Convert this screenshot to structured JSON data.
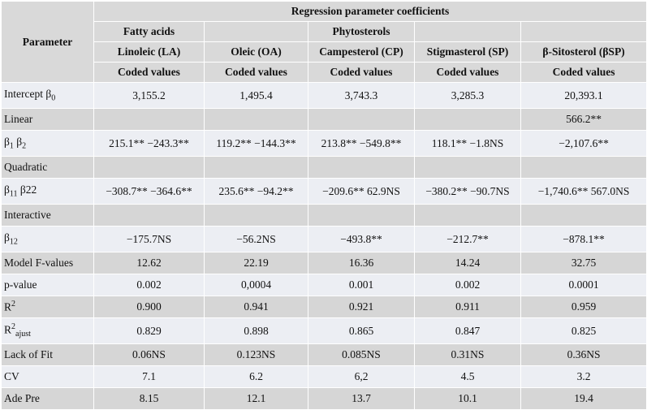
{
  "table": {
    "header": {
      "parameter": "Parameter",
      "group": "Regression parameter coefficients",
      "families": [
        "Fatty acids",
        null,
        "Phytosterols",
        null,
        null
      ],
      "columns": [
        "Linoleic (LA)",
        "Oleic (OA)",
        "Campesterol (CP)",
        "Stigmasterol (SP)",
        "β-Sitosterol (βSP)"
      ],
      "units": [
        "Coded values",
        "Coded values",
        "Coded values",
        "Coded values",
        "Coded values"
      ]
    },
    "rows": [
      {
        "label": [
          {
            "text": "Intercept β"
          },
          {
            "sub": "0"
          }
        ],
        "cells": [
          "3,155.2",
          "1,495.4",
          "3,743.3",
          "3,285.3",
          "20,393.1"
        ]
      },
      {
        "label": [
          {
            "text": "Linear"
          }
        ],
        "cells": [
          null,
          null,
          null,
          null,
          "566.2**"
        ]
      },
      {
        "label": [
          {
            "text": "β"
          },
          {
            "sub": "1"
          },
          {
            "text": " β"
          },
          {
            "sub": "2"
          }
        ],
        "cells": [
          "215.1** −243.3**",
          "119.2** −144.3**",
          "213.8**  −549.8**",
          "118.1**  −1.8NS",
          "−2,107.6**"
        ]
      },
      {
        "label": [
          {
            "text": "Quadratic"
          }
        ],
        "cells": [
          null,
          null,
          null,
          null,
          null
        ]
      },
      {
        "label": [
          {
            "text": "β"
          },
          {
            "sub": "11"
          },
          {
            "text": " β22"
          }
        ],
        "cells": [
          "−308.7** −364.6**",
          "235.6** −94.2**",
          "−209.6** 62.9NS",
          "−380.2** −90.7NS",
          "−1,740.6**  567.0NS"
        ]
      },
      {
        "label": [
          {
            "text": "Interactive"
          }
        ],
        "cells": [
          null,
          null,
          null,
          null,
          null
        ]
      },
      {
        "label": [
          {
            "text": "β"
          },
          {
            "sub": "12"
          }
        ],
        "cells": [
          "−175.7NS",
          "−56.2NS",
          "−493.8**",
          "−212.7**",
          "−878.1**"
        ]
      },
      {
        "label": [
          {
            "text": "Model F-values"
          }
        ],
        "cells": [
          "12.62",
          "22.19",
          "16.36",
          "14.24",
          "32.75"
        ]
      },
      {
        "label": [
          {
            "text": "p-value"
          }
        ],
        "cells": [
          "0.002",
          "0,0004",
          "0.001",
          "0.002",
          "0.0001"
        ]
      },
      {
        "label": [
          {
            "text": "R"
          },
          {
            "sup": "2"
          }
        ],
        "cells": [
          "0.900",
          "0.941",
          "0.921",
          "0.911",
          "0.959"
        ]
      },
      {
        "label": [
          {
            "text": "R"
          },
          {
            "sup": "2"
          },
          {
            "sub": "ajust"
          }
        ],
        "cells": [
          "0.829",
          "0.898",
          "0.865",
          "0.847",
          "0.825"
        ]
      },
      {
        "label": [
          {
            "text": "Lack of Fit"
          }
        ],
        "cells": [
          "0.06NS",
          "0.123NS",
          "0.085NS",
          "0.31NS",
          "0.36NS"
        ]
      },
      {
        "label": [
          {
            "text": "CV"
          }
        ],
        "cells": [
          "7.1",
          "6.2",
          "6,2",
          "4.5",
          "3.2"
        ]
      },
      {
        "label": [
          {
            "text": "Ade Pre"
          }
        ],
        "cells": [
          "8.15",
          "12.1",
          "13.7",
          "10.1",
          "19.4"
        ]
      }
    ]
  }
}
